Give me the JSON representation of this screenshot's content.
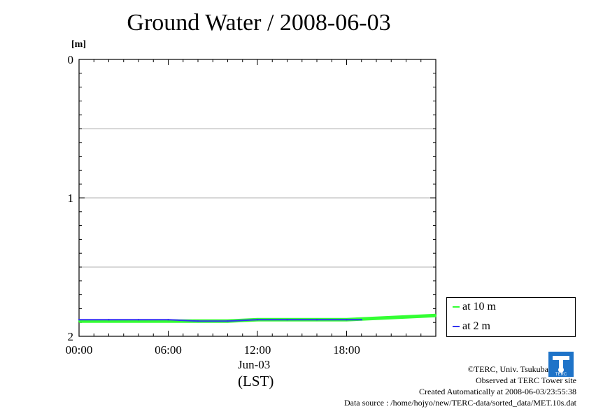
{
  "title": "Ground Water / 2008-06-03",
  "unit_label": "[m]",
  "x_date_label": "Jun-03",
  "x_tz_label": "(LST)",
  "credits": {
    "copyright": "©TERC, Univ. Tsukuba",
    "observed": "Observed at TERC Tower site",
    "created": "Created Automatically at 2008-06-03/23:55:38",
    "source": "Data source : /home/hojyo/new/TERC-data/sorted_data/MET.10s.dat"
  },
  "logo_text": "TERC",
  "colors": {
    "at_10m": "#33ff33",
    "at_2m": "#3333ee",
    "grid": "#b0b0b0"
  },
  "chart_data": {
    "type": "line",
    "title": "Ground Water / 2008-06-03",
    "ylabel": "[m]",
    "xlabel": "(LST)",
    "y_inverted": true,
    "ylim": [
      0,
      2
    ],
    "xlim": [
      0,
      24
    ],
    "y_ticks": [
      0,
      1,
      2
    ],
    "y_tick_labels": [
      "0",
      "1",
      "2"
    ],
    "x_ticks": [
      0,
      6,
      12,
      18
    ],
    "x_tick_labels": [
      "00:00",
      "06:00",
      "12:00",
      "18:00"
    ],
    "grid": true,
    "legend": "right-bottom",
    "series": [
      {
        "name": "at 10 m",
        "color": "#33ff33",
        "x": [
          0,
          2,
          4,
          6,
          8,
          10,
          12,
          14,
          16,
          18,
          20,
          22,
          24
        ],
        "y": [
          1.89,
          1.89,
          1.89,
          1.89,
          1.89,
          1.89,
          1.88,
          1.88,
          1.88,
          1.88,
          1.87,
          1.86,
          1.85
        ]
      },
      {
        "name": "at 2 m",
        "color": "#3333ee",
        "x": [
          0,
          2,
          4,
          6,
          8,
          10,
          12,
          14,
          16,
          18,
          19
        ],
        "y": [
          1.88,
          1.88,
          1.88,
          1.88,
          1.89,
          1.89,
          1.88,
          1.88,
          1.88,
          1.88,
          1.88
        ]
      }
    ]
  }
}
